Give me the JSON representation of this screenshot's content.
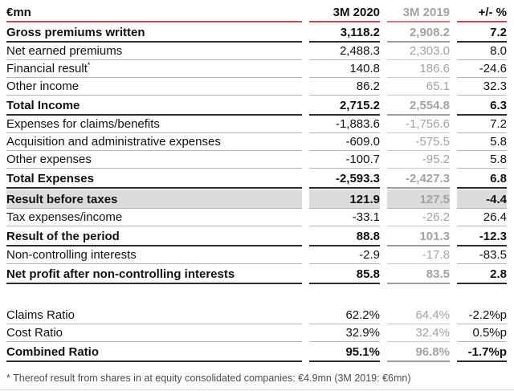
{
  "colors": {
    "accent_red": "#c14a55",
    "accent_red_muted": "#cc7d85",
    "gray_column_text": "#a3a3a3",
    "highlight_row_bg": "#dcdcdc",
    "bold_rule": "#2d2d2d",
    "regular_rule": "#b4b4b4"
  },
  "table": {
    "columns": [
      "€mn",
      "3M 2020",
      "3M 2019",
      "+/- %"
    ],
    "rows": [
      {
        "label": "Gross premiums written",
        "v2020": "3,118.2",
        "v2019": "2,908.2",
        "delta": "7.2",
        "style": "bold"
      },
      {
        "label": "Net earned premiums",
        "v2020": "2,488.3",
        "v2019": "2,303.0",
        "delta": "8.0",
        "style": "regular"
      },
      {
        "label": "Financial result*",
        "v2020": "140.8",
        "v2019": "186.6",
        "delta": "-24.6",
        "style": "regular"
      },
      {
        "label": "Other income",
        "v2020": "86.2",
        "v2019": "65.1",
        "delta": "32.3",
        "style": "regular"
      },
      {
        "label": "Total Income",
        "v2020": "2,715.2",
        "v2019": "2,554.8",
        "delta": "6.3",
        "style": "bold"
      },
      {
        "label": "Expenses for claims/benefits",
        "v2020": "-1,883.6",
        "v2019": "-1,756.6",
        "delta": "7.2",
        "style": "regular"
      },
      {
        "label": "Acquisition and administrative expenses",
        "v2020": "-609.0",
        "v2019": "-575.5",
        "delta": "5.8",
        "style": "regular"
      },
      {
        "label": "Other expenses",
        "v2020": "-100.7",
        "v2019": "-95.2",
        "delta": "5.8",
        "style": "regular"
      },
      {
        "label": "Total Expenses",
        "v2020": "-2,593.3",
        "v2019": "-2,427.3",
        "delta": "6.8",
        "style": "bold"
      },
      {
        "label": "Result before taxes",
        "v2020": "121.9",
        "v2019": "127.5",
        "delta": "-4.4",
        "style": "highlight"
      },
      {
        "label": "Tax expenses/income",
        "v2020": "-33.1",
        "v2019": "-26.2",
        "delta": "26.4",
        "style": "regular"
      },
      {
        "label": "Result of the period",
        "v2020": "88.8",
        "v2019": "101.3",
        "delta": "-12.3",
        "style": "bold"
      },
      {
        "label": "Non-controlling interests",
        "v2020": "-2.9",
        "v2019": "-17.8",
        "delta": "-83.5",
        "style": "regular"
      },
      {
        "label": "Net profit after non-controlling interests",
        "v2020": "85.8",
        "v2019": "83.5",
        "delta": "2.8",
        "style": "bold"
      },
      {
        "style": "spacer"
      },
      {
        "label": "Claims Ratio",
        "v2020": "62.2%",
        "v2019": "64.4%",
        "delta": "-2.2%p",
        "style": "regular"
      },
      {
        "label": "Cost Ratio",
        "v2020": "32.9%",
        "v2019": "32.4%",
        "delta": "0.5%p",
        "style": "regular"
      },
      {
        "label": "Combined Ratio",
        "v2020": "95.1%",
        "v2019": "96.8%",
        "delta": "-1.7%p",
        "style": "bold"
      }
    ],
    "footnote": "* Thereof result from shares in at equity consolidated companies: €4.9mn (3M 2019: €6mn)"
  }
}
